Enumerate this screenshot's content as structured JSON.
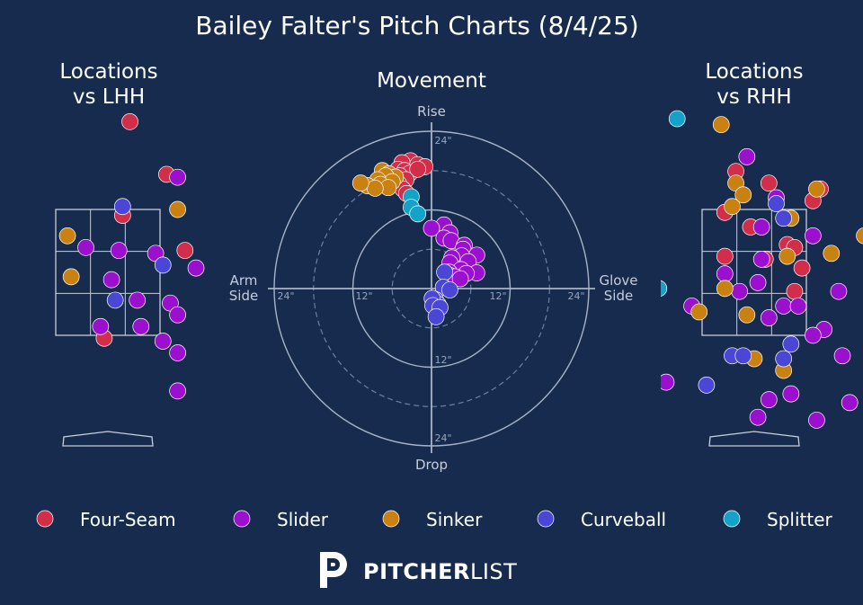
{
  "title": "Bailey Falter's Pitch Charts (8/4/25)",
  "panels": {
    "lhh_title": [
      "Locations",
      "vs LHH"
    ],
    "rhh_title": [
      "Locations",
      "vs RHH"
    ],
    "movement_title": "Movement"
  },
  "movement_axes": {
    "top": "Rise",
    "bottom": "Drop",
    "left": [
      "Arm",
      "Side"
    ],
    "right": [
      "Glove",
      "Side"
    ],
    "ring_labels": [
      "24\"",
      "12\"",
      "12\"",
      "24\"",
      "12\"",
      "24\"",
      "24\""
    ]
  },
  "colors": {
    "background": "#162b4e",
    "Four-Seam": "#d22d49",
    "Slider": "#9b0fcf",
    "Sinker": "#c98212",
    "Curveball": "#4a46d6",
    "Splitter": "#14a2c8"
  },
  "legend": [
    "Four-Seam",
    "Slider",
    "Sinker",
    "Curveball",
    "Splitter"
  ],
  "brand": {
    "bold": "PITCHER",
    "light": "LIST",
    "mark": "P"
  },
  "chart_data": [
    {
      "type": "scatter",
      "title": "Locations vs LHH",
      "xlabel": "",
      "ylabel": "",
      "units": "feet (plate_x from catcher view, plate_z)",
      "xlim": [
        -2.0,
        2.0
      ],
      "ylim": [
        0.0,
        5.4
      ],
      "series": [
        {
          "name": "Four-Seam",
          "points": [
            [
              0.3,
              5.0
            ],
            [
              0.8,
              4.1
            ],
            [
              0.2,
              3.4
            ],
            [
              1.05,
              2.8
            ],
            [
              -0.05,
              1.3
            ]
          ]
        },
        {
          "name": "Slider",
          "points": [
            [
              0.95,
              4.05
            ],
            [
              -0.3,
              2.85
            ],
            [
              0.15,
              2.8
            ],
            [
              0.65,
              2.75
            ],
            [
              1.2,
              2.5
            ],
            [
              0.05,
              2.3
            ],
            [
              0.4,
              1.95
            ],
            [
              0.85,
              1.9
            ],
            [
              0.95,
              1.7
            ],
            [
              -0.1,
              1.5
            ],
            [
              0.45,
              1.5
            ],
            [
              0.75,
              1.25
            ],
            [
              0.95,
              1.05
            ],
            [
              0.95,
              0.4
            ]
          ]
        },
        {
          "name": "Sinker",
          "points": [
            [
              0.95,
              3.5
            ],
            [
              -0.55,
              3.05
            ],
            [
              -0.5,
              2.35
            ]
          ]
        },
        {
          "name": "Curveball",
          "points": [
            [
              0.2,
              3.55
            ],
            [
              0.75,
              2.55
            ],
            [
              0.1,
              1.95
            ]
          ]
        },
        {
          "name": "Splitter",
          "points": []
        }
      ]
    },
    {
      "type": "scatter",
      "title": "Movement",
      "xlabel": "",
      "ylabel": "",
      "units": "inches (horizontal break: negative = arm side, positive = glove side; vertical break)",
      "xlim": [
        -24,
        24
      ],
      "ylim": [
        -24,
        24
      ],
      "series": [
        {
          "name": "Four-Seam",
          "points": [
            [
              -3.2,
              19.5
            ],
            [
              -4.5,
              19.2
            ],
            [
              -2.1,
              18.9
            ],
            [
              -1.0,
              18.6
            ],
            [
              -5.1,
              18.2
            ],
            [
              -4.1,
              18.0
            ],
            [
              -3.3,
              17.6
            ],
            [
              -2.1,
              18.2
            ],
            [
              -4.8,
              17.2
            ],
            [
              -3.9,
              16.6
            ],
            [
              -5.0,
              16.0
            ],
            [
              -4.4,
              15.2
            ],
            [
              -3.8,
              14.5
            ]
          ]
        },
        {
          "name": "Slider",
          "points": [
            [
              1.9,
              9.7
            ],
            [
              0.0,
              9.2
            ],
            [
              2.8,
              8.5
            ],
            [
              1.9,
              7.7
            ],
            [
              3.0,
              7.3
            ],
            [
              5.0,
              6.6
            ],
            [
              4.8,
              6.0
            ],
            [
              6.9,
              5.1
            ],
            [
              4.6,
              5.0
            ],
            [
              3.1,
              4.7
            ],
            [
              5.6,
              4.1
            ],
            [
              2.8,
              3.9
            ],
            [
              4.5,
              2.9
            ],
            [
              2.7,
              2.5
            ],
            [
              6.9,
              2.4
            ],
            [
              5.3,
              2.3
            ],
            [
              2.8,
              2.0
            ],
            [
              3.6,
              1.8
            ],
            [
              4.4,
              1.5
            ]
          ]
        },
        {
          "name": "Sinker",
          "points": [
            [
              -7.5,
              18.0
            ],
            [
              -6.5,
              17.5
            ],
            [
              -5.5,
              17.0
            ],
            [
              -7.0,
              17.2
            ],
            [
              -8.2,
              16.6
            ],
            [
              -6.0,
              16.3
            ],
            [
              -7.8,
              15.9
            ],
            [
              -6.6,
              15.4
            ],
            [
              -9.8,
              15.7
            ],
            [
              -8.6,
              15.3
            ],
            [
              -10.8,
              16.1
            ]
          ]
        },
        {
          "name": "Curveball",
          "points": [
            [
              2.0,
              2.5
            ],
            [
              1.8,
              0.2
            ],
            [
              2.8,
              -0.2
            ],
            [
              0.6,
              -1.7
            ],
            [
              1.0,
              -2.4
            ],
            [
              0.1,
              -1.5
            ],
            [
              0.2,
              -2.6
            ],
            [
              1.3,
              -2.9
            ],
            [
              0.7,
              -4.3
            ]
          ]
        },
        {
          "name": "Splitter",
          "points": [
            [
              -3.1,
              14.0
            ],
            [
              -3.1,
              12.4
            ],
            [
              -2.1,
              11.4
            ]
          ]
        }
      ]
    },
    {
      "type": "scatter",
      "title": "Locations vs RHH",
      "xlabel": "",
      "ylabel": "",
      "units": "feet (plate_x from catcher view, plate_z)",
      "xlim": [
        -2.0,
        2.0
      ],
      "ylim": [
        0.0,
        5.4
      ],
      "series": [
        {
          "name": "Four-Seam",
          "points": [
            [
              -0.25,
              4.15
            ],
            [
              0.2,
              3.95
            ],
            [
              0.9,
              3.85
            ],
            [
              0.8,
              3.65
            ],
            [
              -0.4,
              3.45
            ],
            [
              -0.05,
              3.2
            ],
            [
              0.45,
              2.9
            ],
            [
              0.55,
              2.85
            ],
            [
              -0.4,
              2.7
            ],
            [
              0.15,
              2.65
            ],
            [
              0.65,
              2.5
            ],
            [
              0.55,
              2.1
            ]
          ]
        },
        {
          "name": "Slider",
          "points": [
            [
              -0.1,
              4.4
            ],
            [
              0.3,
              3.7
            ],
            [
              0.1,
              3.2
            ],
            [
              0.8,
              3.05
            ],
            [
              0.1,
              2.65
            ],
            [
              -0.4,
              2.4
            ],
            [
              0.05,
              2.25
            ],
            [
              1.15,
              2.1
            ],
            [
              -0.2,
              2.1
            ],
            [
              -0.85,
              1.85
            ],
            [
              0.4,
              1.85
            ],
            [
              0.6,
              1.85
            ],
            [
              0.2,
              1.65
            ],
            [
              0.95,
              1.45
            ],
            [
              0.8,
              1.35
            ],
            [
              1.2,
              1.0
            ],
            [
              -1.2,
              0.55
            ],
            [
              0.5,
              0.35
            ],
            [
              0.2,
              0.25
            ],
            [
              1.3,
              0.2
            ],
            [
              0.05,
              -0.05
            ],
            [
              0.85,
              -0.1
            ]
          ]
        },
        {
          "name": "Sinker",
          "points": [
            [
              -0.45,
              4.95
            ],
            [
              -0.25,
              3.95
            ],
            [
              -0.15,
              3.75
            ],
            [
              -0.3,
              3.55
            ],
            [
              0.5,
              3.35
            ],
            [
              0.85,
              3.85
            ],
            [
              1.5,
              3.05
            ],
            [
              1.05,
              2.75
            ],
            [
              0.45,
              2.7
            ],
            [
              -0.4,
              2.15
            ],
            [
              -0.75,
              1.75
            ],
            [
              -0.1,
              1.7
            ],
            [
              0.0,
              0.95
            ],
            [
              0.4,
              0.75
            ]
          ]
        },
        {
          "name": "Curveball",
          "points": [
            [
              0.3,
              3.6
            ],
            [
              0.4,
              3.35
            ],
            [
              -0.3,
              1.0
            ],
            [
              -0.15,
              1.0
            ],
            [
              0.4,
              0.95
            ],
            [
              0.5,
              1.2
            ],
            [
              -0.65,
              0.5
            ]
          ]
        },
        {
          "name": "Splitter",
          "points": [
            [
              -1.05,
              5.05
            ],
            [
              -1.3,
              2.15
            ]
          ]
        }
      ]
    }
  ]
}
